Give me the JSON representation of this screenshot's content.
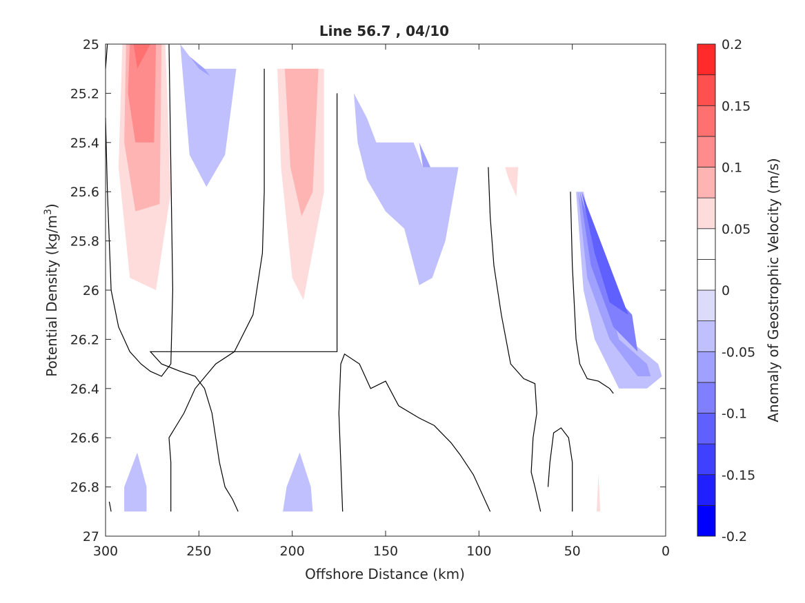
{
  "chart_data": {
    "type": "heatmap",
    "subtype": "filled-contour",
    "title": "Line 56.7 , 04/10",
    "xlabel": "Offshore Distance (km)",
    "ylabel": "Potential Density (kg/m^3)",
    "ylabel_parts": {
      "base": "Potential Density (kg/m",
      "sup": "3",
      "close": ")"
    },
    "colorbar_label": "Anomaly of Geostrophic Velocity (m/s)",
    "xlim": [
      300,
      0
    ],
    "x_reversed": true,
    "ylim": [
      25,
      27
    ],
    "y_reversed": true,
    "xticks": [
      300,
      250,
      200,
      150,
      100,
      50,
      0
    ],
    "xtick_labels": [
      "300",
      "250",
      "200",
      "150",
      "100",
      "50",
      "0"
    ],
    "yticks": [
      25,
      25.2,
      25.4,
      25.6,
      25.8,
      26,
      26.2,
      26.4,
      26.6,
      26.8,
      27
    ],
    "ytick_labels": [
      "25",
      "25.2",
      "25.4",
      "25.6",
      "25.8",
      "26",
      "26.2",
      "26.4",
      "26.6",
      "26.8",
      "27"
    ],
    "colorbar": {
      "range": [
        -0.2,
        0.2
      ],
      "ticks": [
        0.2,
        0.15,
        0.1,
        0.05,
        0,
        -0.05,
        -0.1,
        -0.15,
        -0.2
      ],
      "tick_labels": [
        "0.2",
        "0.15",
        "0.1",
        "0.05",
        "0",
        "-0.05",
        "-0.1",
        "-0.15",
        "-0.2"
      ],
      "levels": [
        -0.2,
        -0.175,
        -0.15,
        -0.125,
        -0.1,
        -0.075,
        -0.05,
        -0.025,
        0,
        0.025,
        0.05,
        0.075,
        0.1,
        0.125,
        0.15,
        0.175,
        0.2
      ],
      "colors": [
        "#0000ff",
        "#2020ff",
        "#4040ff",
        "#6060ff",
        "#8080ff",
        "#a0a0ff",
        "#c0c0ff",
        "#dcdcfa",
        "#ffffff",
        "#ffffff",
        "#ffdcdc",
        "#ffb4b4",
        "#ff8c8c",
        "#ff7070",
        "#ff5050",
        "#ff2a2a",
        "#ff0000"
      ]
    },
    "regions": [
      {
        "name": "pos-1",
        "level": 0.05,
        "points": [
          [
            291,
            25
          ],
          [
            268,
            25
          ],
          [
            265,
            25.6
          ],
          [
            273,
            26
          ],
          [
            287,
            25.95
          ],
          [
            293,
            25.5
          ]
        ]
      },
      {
        "name": "pos-2",
        "level": 0.075,
        "points": [
          [
            289,
            25
          ],
          [
            270,
            25
          ],
          [
            271,
            25.65
          ],
          [
            284,
            25.68
          ],
          [
            290,
            25.4
          ]
        ]
      },
      {
        "name": "pos-3",
        "level": 0.1,
        "points": [
          [
            287,
            25
          ],
          [
            273,
            25
          ],
          [
            274,
            25.4
          ],
          [
            284,
            25.4
          ],
          [
            288,
            25.2
          ]
        ]
      },
      {
        "name": "pos-4",
        "level": 0.125,
        "points": [
          [
            285,
            25
          ],
          [
            276,
            25
          ],
          [
            283,
            25.1
          ]
        ]
      },
      {
        "name": "neg-1",
        "level": -0.05,
        "points": [
          [
            260,
            25
          ],
          [
            250,
            25.1
          ],
          [
            230,
            25.1
          ],
          [
            236,
            25.45
          ],
          [
            246,
            25.58
          ],
          [
            255,
            25.45
          ]
        ]
      },
      {
        "name": "neg-1b",
        "level": -0.075,
        "points": [
          [
            255,
            25.05
          ],
          [
            247,
            25.1
          ],
          [
            244,
            25.13
          ],
          [
            250,
            25.1
          ]
        ]
      },
      {
        "name": "pos-5",
        "level": 0.05,
        "points": [
          [
            208,
            25.1
          ],
          [
            183,
            25.1
          ],
          [
            183,
            25.6
          ],
          [
            194,
            26.04
          ],
          [
            200,
            25.95
          ],
          [
            206,
            25.5
          ]
        ]
      },
      {
        "name": "pos-6",
        "level": 0.075,
        "points": [
          [
            204,
            25.1
          ],
          [
            186,
            25.1
          ],
          [
            189,
            25.6
          ],
          [
            195,
            25.7
          ],
          [
            201,
            25.5
          ]
        ]
      },
      {
        "name": "neg-2",
        "level": -0.05,
        "points": [
          [
            167,
            25.2
          ],
          [
            160,
            25.3
          ],
          [
            155,
            25.4
          ],
          [
            135,
            25.4
          ],
          [
            130,
            25.5
          ],
          [
            111,
            25.5
          ],
          [
            118,
            25.8
          ],
          [
            125,
            25.95
          ],
          [
            132,
            25.98
          ],
          [
            140,
            25.75
          ],
          [
            150,
            25.68
          ],
          [
            160,
            25.55
          ],
          [
            165,
            25.4
          ]
        ]
      },
      {
        "name": "neg-2b",
        "level": -0.075,
        "points": [
          [
            132,
            25.4
          ],
          [
            126,
            25.5
          ],
          [
            125,
            25.5
          ],
          [
            130,
            25.5
          ]
        ]
      },
      {
        "name": "pos-7",
        "level": 0.05,
        "points": [
          [
            86,
            25.5
          ],
          [
            79,
            25.5
          ],
          [
            80,
            25.62
          ],
          [
            84,
            25.55
          ]
        ]
      },
      {
        "name": "neg-3",
        "level": -0.05,
        "points": [
          [
            48,
            25.6
          ],
          [
            44,
            26.0
          ],
          [
            38,
            26.2
          ],
          [
            25,
            26.4
          ],
          [
            10,
            26.4
          ],
          [
            2,
            26.35
          ],
          [
            4,
            26.3
          ],
          [
            20,
            26.2
          ],
          [
            35,
            25.9
          ],
          [
            44,
            25.6
          ]
        ]
      },
      {
        "name": "neg-3b",
        "level": -0.075,
        "points": [
          [
            47,
            25.6
          ],
          [
            42,
            25.95
          ],
          [
            30,
            26.2
          ],
          [
            15,
            26.35
          ],
          [
            8,
            26.35
          ],
          [
            10,
            26.3
          ],
          [
            25,
            26.2
          ],
          [
            36,
            25.9
          ]
        ]
      },
      {
        "name": "neg-3c",
        "level": -0.1,
        "points": [
          [
            46,
            25.6
          ],
          [
            40,
            25.9
          ],
          [
            28,
            26.15
          ],
          [
            15,
            26.25
          ],
          [
            18,
            26.1
          ],
          [
            30,
            26.0
          ],
          [
            36,
            25.85
          ]
        ]
      },
      {
        "name": "neg-3d",
        "level": -0.125,
        "points": [
          [
            45,
            25.6
          ],
          [
            38,
            25.85
          ],
          [
            30,
            26.05
          ],
          [
            20,
            26.1
          ],
          [
            25,
            26.0
          ],
          [
            35,
            25.8
          ]
        ]
      },
      {
        "name": "neg-4",
        "level": -0.05,
        "points": [
          [
            290,
            26.8
          ],
          [
            283,
            26.66
          ],
          [
            278,
            26.8
          ],
          [
            278,
            26.9
          ],
          [
            290,
            26.9
          ]
        ]
      },
      {
        "name": "neg-5",
        "level": -0.05,
        "points": [
          [
            205,
            26.9
          ],
          [
            203,
            26.8
          ],
          [
            196,
            26.66
          ],
          [
            190,
            26.8
          ],
          [
            189,
            26.9
          ]
        ]
      },
      {
        "name": "pos-8",
        "level": 0.05,
        "points": [
          [
            37,
            26.9
          ],
          [
            36,
            26.75
          ],
          [
            35,
            26.9
          ]
        ]
      }
    ],
    "zero_contours": [
      [
        [
          300,
          25.1
        ],
        [
          299,
          25
        ]
      ],
      [
        [
          300,
          25.3
        ],
        [
          299,
          25.6
        ],
        [
          297,
          26.0
        ],
        [
          293,
          26.15
        ],
        [
          287,
          26.25
        ],
        [
          281,
          26.3
        ],
        [
          276,
          26.33
        ],
        [
          270,
          26.35
        ],
        [
          265,
          26.3
        ],
        [
          264,
          26.0
        ],
        [
          265,
          25.5
        ],
        [
          266,
          25.0
        ],
        [
          266,
          25
        ]
      ],
      [
        [
          298,
          26.86
        ],
        [
          297,
          26.9
        ]
      ],
      [
        [
          265,
          26.9
        ],
        [
          265,
          26.7
        ],
        [
          266,
          26.6
        ],
        [
          258,
          26.5
        ],
        [
          252,
          26.4
        ],
        [
          241,
          26.3
        ],
        [
          231,
          26.25
        ],
        [
          221,
          26.1
        ],
        [
          216,
          25.85
        ],
        [
          215,
          25.6
        ],
        [
          215,
          25.1
        ]
      ],
      [
        [
          229,
          26.9
        ],
        [
          232,
          26.85
        ],
        [
          236,
          26.8
        ],
        [
          239,
          26.7
        ],
        [
          241,
          26.6
        ],
        [
          243,
          26.5
        ],
        [
          247,
          26.4
        ],
        [
          252,
          26.35
        ],
        [
          260,
          26.33
        ],
        [
          270,
          26.3
        ],
        [
          276,
          26.25
        ],
        [
          176,
          26.25
        ],
        [
          176,
          25.2
        ]
      ],
      [
        [
          173,
          26.9
        ],
        [
          175,
          26.5
        ],
        [
          174,
          26.3
        ],
        [
          172,
          26.26
        ],
        [
          164,
          26.3
        ],
        [
          158,
          26.4
        ],
        [
          150,
          26.37
        ],
        [
          143,
          26.47
        ],
        [
          132,
          26.52
        ],
        [
          124,
          26.55
        ],
        [
          115,
          26.62
        ],
        [
          110,
          26.67
        ],
        [
          103,
          26.75
        ],
        [
          94,
          26.9
        ]
      ],
      [
        [
          95,
          25.5
        ],
        [
          94,
          25.7
        ],
        [
          92,
          25.9
        ],
        [
          88,
          26.1
        ],
        [
          83,
          26.3
        ],
        [
          76,
          26.36
        ],
        [
          70,
          26.38
        ],
        [
          69,
          26.5
        ],
        [
          71,
          26.6
        ],
        [
          72,
          26.74
        ],
        [
          70,
          26.8
        ],
        [
          67,
          26.9
        ]
      ],
      [
        [
          50,
          26.9
        ],
        [
          50,
          26.7
        ],
        [
          52,
          26.6
        ],
        [
          56,
          26.56
        ],
        [
          60,
          26.58
        ],
        [
          62,
          26.7
        ],
        [
          63,
          26.8
        ]
      ],
      [
        [
          51,
          25.6
        ],
        [
          50,
          25.9
        ],
        [
          48,
          26.2
        ],
        [
          46,
          26.3
        ],
        [
          42,
          26.36
        ],
        [
          36,
          26.37
        ],
        [
          30,
          26.4
        ],
        [
          28,
          26.42
        ]
      ]
    ]
  }
}
